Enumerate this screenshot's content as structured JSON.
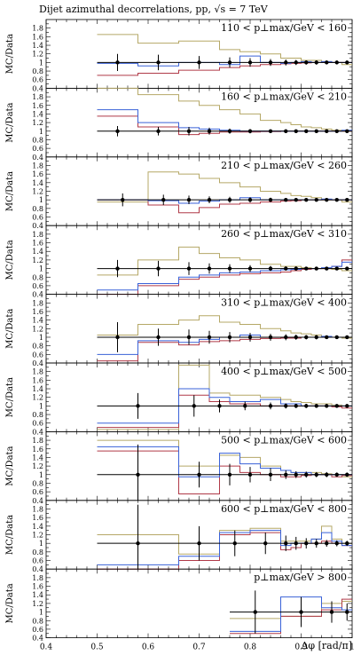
{
  "chart_data": {
    "type": "step",
    "title": "Dijet azimuthal decorrelations, pp, √s = 7 TeV",
    "xlabel": "Δφ [rad/π]",
    "ylabel": "MC/Data",
    "xlim": [
      0.4,
      1.0
    ],
    "ylim": [
      0.4,
      2.0
    ],
    "x_ticks": [
      "0.4",
      "0.5",
      "0.6",
      "0.7",
      "0.8",
      "0.9",
      "1"
    ],
    "y_ticks": [
      "0.4",
      "0.6",
      "0.8",
      "1",
      "1.2",
      "1.4",
      "1.6",
      "1.8"
    ],
    "series_colors": {
      "data": "#000000",
      "blue": "#3a62d8",
      "red": "#b03a48",
      "olive": "#b5a867"
    },
    "panels": [
      {
        "label": "110 < p⊥max/GeV < 160",
        "edges": [
          0.5,
          0.58,
          0.66,
          0.74,
          0.78,
          0.82,
          0.86,
          0.88,
          0.9,
          0.92,
          0.94,
          0.96,
          0.98,
          1.0
        ],
        "data_y": [
          1.0,
          1.0,
          1.0,
          1.0,
          1.0,
          1.0,
          1.0,
          1.0,
          1.0,
          1.0,
          1.0,
          1.0,
          1.0
        ],
        "data_err": [
          0.2,
          0.18,
          0.15,
          0.12,
          0.1,
          0.08,
          0.07,
          0.06,
          0.05,
          0.05,
          0.04,
          0.04,
          0.04
        ],
        "blue": [
          0.98,
          0.92,
          1.0,
          0.95,
          1.15,
          1.0,
          0.98,
          1.0,
          1.02,
          1.0,
          1.02,
          1.0,
          1.0
        ],
        "red": [
          0.7,
          0.75,
          0.82,
          0.88,
          0.92,
          0.95,
          0.97,
          0.98,
          0.99,
          1.0,
          1.0,
          1.0,
          1.0
        ],
        "olive": [
          1.65,
          1.45,
          1.5,
          1.3,
          1.25,
          1.2,
          1.1,
          1.1,
          1.05,
          1.05,
          1.02,
          1.0,
          0.95
        ]
      },
      {
        "label": "160 < p⊥max/GeV < 210",
        "edges": [
          0.5,
          0.58,
          0.66,
          0.7,
          0.74,
          0.78,
          0.82,
          0.86,
          0.88,
          0.9,
          0.92,
          0.94,
          0.96,
          0.98,
          1.0
        ],
        "data_y": [
          1.0,
          1.0,
          1.0,
          1.0,
          1.0,
          1.0,
          1.0,
          1.0,
          1.0,
          1.0,
          1.0,
          1.0,
          1.0,
          1.0
        ],
        "data_err": [
          0.12,
          0.1,
          0.1,
          0.08,
          0.06,
          0.05,
          0.04,
          0.04,
          0.03,
          0.03,
          0.03,
          0.03,
          0.02,
          0.02
        ],
        "blue": [
          1.5,
          1.2,
          1.08,
          1.05,
          1.02,
          1.0,
          1.0,
          1.0,
          1.0,
          1.0,
          1.0,
          1.0,
          1.0,
          1.02
        ],
        "red": [
          1.35,
          1.1,
          0.92,
          0.95,
          0.98,
          0.98,
          0.99,
          1.0,
          1.0,
          1.0,
          1.0,
          1.0,
          1.0,
          1.0
        ],
        "olive": [
          2.1,
          1.85,
          1.7,
          1.6,
          1.5,
          1.4,
          1.25,
          1.2,
          1.15,
          1.1,
          1.08,
          1.05,
          1.02,
          1.0
        ]
      },
      {
        "label": "210 < p⊥max/GeV < 260",
        "edges": [
          0.5,
          0.6,
          0.66,
          0.7,
          0.74,
          0.78,
          0.82,
          0.86,
          0.88,
          0.9,
          0.92,
          0.94,
          0.96,
          0.98,
          1.0
        ],
        "data_y": [
          1.0,
          1.0,
          1.0,
          1.0,
          1.0,
          1.0,
          1.0,
          1.0,
          1.0,
          1.0,
          1.0,
          1.0,
          1.0,
          1.0
        ],
        "data_err": [
          0.15,
          0.12,
          0.1,
          0.08,
          0.07,
          0.06,
          0.05,
          0.04,
          0.04,
          0.03,
          0.03,
          0.03,
          0.03,
          0.03
        ],
        "blue": [
          1.0,
          0.98,
          0.92,
          0.97,
          1.0,
          1.05,
          1.0,
          1.0,
          1.0,
          1.0,
          1.0,
          1.02,
          1.0,
          1.0
        ],
        "red": [
          1.0,
          0.88,
          0.7,
          0.82,
          0.9,
          0.92,
          0.95,
          0.97,
          0.98,
          1.0,
          1.0,
          1.0,
          1.0,
          1.0
        ],
        "olive": [
          0.95,
          1.65,
          1.6,
          1.5,
          1.4,
          1.3,
          1.2,
          1.15,
          1.1,
          1.08,
          1.05,
          1.0,
          1.0,
          0.95
        ]
      },
      {
        "label": "260 < p⊥max/GeV < 310",
        "edges": [
          0.5,
          0.58,
          0.66,
          0.7,
          0.74,
          0.78,
          0.82,
          0.86,
          0.88,
          0.9,
          0.92,
          0.94,
          0.96,
          0.98,
          1.0
        ],
        "data_y": [
          1.0,
          1.0,
          1.0,
          1.0,
          1.0,
          1.0,
          1.0,
          1.0,
          1.0,
          1.0,
          1.0,
          1.0,
          1.0,
          1.0
        ],
        "data_err": [
          0.2,
          0.18,
          0.15,
          0.12,
          0.1,
          0.08,
          0.06,
          0.05,
          0.05,
          0.04,
          0.04,
          0.04,
          0.03,
          0.03
        ],
        "blue": [
          0.5,
          0.65,
          0.8,
          0.85,
          0.9,
          0.92,
          0.95,
          0.97,
          0.98,
          1.0,
          1.0,
          1.02,
          1.05,
          1.15
        ],
        "red": [
          0.4,
          0.6,
          0.75,
          0.8,
          0.85,
          0.88,
          0.9,
          0.92,
          0.95,
          0.98,
          1.0,
          1.0,
          1.05,
          1.2
        ],
        "olive": [
          0.85,
          1.2,
          1.5,
          1.35,
          1.25,
          1.2,
          1.1,
          1.05,
          1.05,
          1.02,
          1.0,
          1.0,
          0.98,
          0.95
        ]
      },
      {
        "label": "310 < p⊥max/GeV < 400",
        "edges": [
          0.5,
          0.58,
          0.66,
          0.7,
          0.74,
          0.78,
          0.82,
          0.86,
          0.88,
          0.9,
          0.92,
          0.94,
          0.96,
          0.98,
          1.0
        ],
        "data_y": [
          1.0,
          1.0,
          1.0,
          1.0,
          1.0,
          1.0,
          1.0,
          1.0,
          1.0,
          1.0,
          1.0,
          1.0,
          1.0,
          1.0
        ],
        "data_err": [
          0.35,
          0.2,
          0.18,
          0.15,
          0.12,
          0.1,
          0.08,
          0.07,
          0.06,
          0.05,
          0.05,
          0.04,
          0.04,
          0.04
        ],
        "blue": [
          0.6,
          0.92,
          0.88,
          0.95,
          1.0,
          1.05,
          1.0,
          1.0,
          1.0,
          1.0,
          1.0,
          1.02,
          1.0,
          1.0
        ],
        "red": [
          0.45,
          0.88,
          0.82,
          0.9,
          0.92,
          0.95,
          0.97,
          0.98,
          0.98,
          1.0,
          1.0,
          1.0,
          1.0,
          1.0
        ],
        "olive": [
          1.05,
          1.3,
          1.4,
          1.5,
          1.35,
          1.3,
          1.2,
          1.15,
          1.1,
          1.08,
          1.05,
          1.02,
          1.0,
          0.98
        ]
      },
      {
        "label": "400 < p⊥max/GeV < 500",
        "edges": [
          0.5,
          0.66,
          0.72,
          0.76,
          0.82,
          0.86,
          0.88,
          0.9,
          0.92,
          0.94,
          0.96,
          0.98,
          1.0
        ],
        "data_y": [
          1.0,
          1.0,
          1.0,
          1.0,
          1.0,
          1.0,
          1.0,
          1.0,
          1.0,
          1.0,
          1.0,
          1.0
        ],
        "data_err": [
          0.3,
          0.25,
          0.15,
          0.1,
          0.08,
          0.06,
          0.05,
          0.05,
          0.04,
          0.04,
          0.04,
          0.04
        ],
        "blue": [
          0.6,
          1.4,
          1.2,
          1.1,
          1.15,
          1.05,
          1.05,
          1.0,
          1.0,
          1.0,
          1.0,
          1.0
        ],
        "red": [
          0.5,
          1.25,
          1.1,
          1.05,
          1.0,
          1.0,
          1.0,
          1.0,
          1.0,
          1.0,
          0.98,
          0.95
        ],
        "olive": [
          0.45,
          1.95,
          1.3,
          1.25,
          1.2,
          1.15,
          1.1,
          1.08,
          1.05,
          1.05,
          1.02,
          1.0
        ]
      },
      {
        "label": "500 < p⊥max/GeV < 600",
        "edges": [
          0.5,
          0.66,
          0.74,
          0.78,
          0.82,
          0.86,
          0.88,
          0.9,
          0.92,
          0.94,
          0.96,
          0.98,
          1.0
        ],
        "data_y": [
          1.0,
          1.0,
          1.0,
          1.0,
          1.0,
          1.0,
          1.0,
          1.0,
          1.0,
          1.0,
          1.0,
          1.0
        ],
        "data_err": [
          0.7,
          0.3,
          0.25,
          0.18,
          0.15,
          0.1,
          0.08,
          0.07,
          0.06,
          0.06,
          0.05,
          0.05
        ],
        "blue": [
          1.65,
          0.95,
          1.5,
          1.25,
          1.15,
          1.1,
          1.05,
          1.05,
          1.0,
          1.0,
          1.0,
          1.0
        ],
        "red": [
          1.55,
          0.55,
          1.2,
          1.05,
          1.0,
          0.95,
          0.95,
          0.98,
          1.0,
          1.0,
          0.95,
          0.98
        ],
        "olive": [
          1.8,
          1.2,
          1.45,
          1.4,
          1.2,
          1.1,
          1.05,
          1.05,
          1.05,
          1.02,
          1.0,
          0.95
        ]
      },
      {
        "label": "600 < p⊥max/GeV < 800",
        "edges": [
          0.5,
          0.66,
          0.74,
          0.8,
          0.86,
          0.88,
          0.9,
          0.92,
          0.94,
          0.96,
          0.98,
          1.0
        ],
        "data_y": [
          1.0,
          1.0,
          1.0,
          1.0,
          1.0,
          1.0,
          1.0,
          1.0,
          1.0,
          1.0,
          1.0
        ],
        "data_err": [
          0.9,
          0.4,
          0.3,
          0.25,
          0.18,
          0.15,
          0.12,
          0.1,
          0.08,
          0.07,
          0.06
        ],
        "blue": [
          0.5,
          0.7,
          1.25,
          1.3,
          0.95,
          1.0,
          1.0,
          1.1,
          1.25,
          1.05,
          0.95
        ],
        "red": [
          0.4,
          0.6,
          1.2,
          1.25,
          0.85,
          0.9,
          1.0,
          1.0,
          1.05,
          1.0,
          0.95
        ],
        "olive": [
          1.2,
          0.75,
          1.3,
          1.35,
          1.05,
          1.05,
          1.05,
          1.1,
          1.4,
          1.1,
          1.0
        ]
      },
      {
        "label": "p⊥max/GeV > 800",
        "edges": [
          0.76,
          0.86,
          0.94,
          0.98,
          1.0
        ],
        "data_y": [
          1.0,
          1.0,
          1.0,
          1.0
        ],
        "data_err": [
          0.5,
          0.35,
          0.25,
          0.2
        ],
        "blue": [
          0.55,
          1.35,
          1.1,
          1.05
        ],
        "red": [
          0.5,
          0.9,
          1.05,
          1.3
        ],
        "olive": [
          0.85,
          0.9,
          1.2,
          1.25
        ]
      }
    ]
  }
}
